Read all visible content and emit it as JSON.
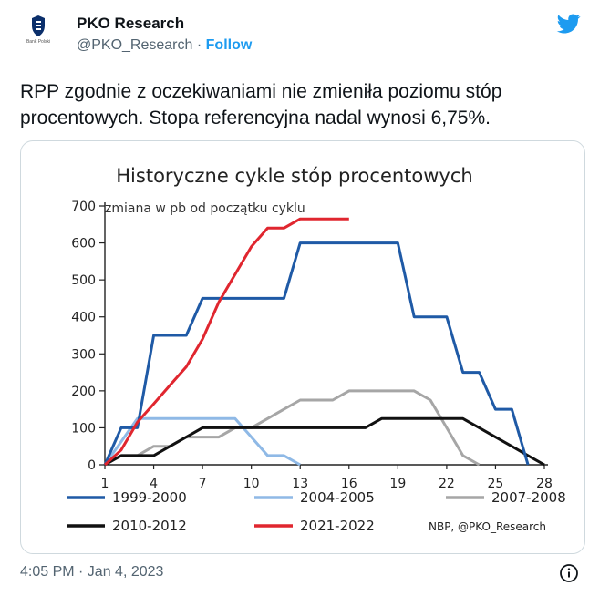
{
  "account": {
    "display_name": "PKO Research",
    "handle": "@PKO_Research",
    "separator": "·",
    "follow_label": "Follow",
    "avatar_caption": "Bank Polski"
  },
  "tweet": {
    "text": "RPP zgodnie z oczekiwaniami nie zmieniła poziomu stóp procentowych. Stopa referencyjna nadal wynosi 6,75%.",
    "timestamp": "4:05 PM · Jan 4, 2023"
  },
  "colors": {
    "brand_blue": "#1d9bf0",
    "pko_navy": "#0b2f6b"
  },
  "icons": {
    "logo": "twitter-bird-icon",
    "info": "info-icon",
    "avatar": "pko-logo-icon"
  },
  "chart_data": {
    "type": "line",
    "title": "Historyczne cykle stóp procentowych",
    "ylabel": "zmiana w pb od początku cyklu",
    "source": "NBP, @PKO_Research",
    "xlim": [
      1,
      28
    ],
    "ylim": [
      0,
      700
    ],
    "x_ticks": [
      1,
      4,
      7,
      10,
      13,
      16,
      19,
      22,
      25,
      28
    ],
    "y_ticks": [
      0,
      100,
      200,
      300,
      400,
      500,
      600,
      700
    ],
    "grid": false,
    "legend_position": "bottom",
    "series": [
      {
        "name": "1999-2000",
        "color": "#1f5aa6",
        "points": [
          [
            1,
            0
          ],
          [
            2,
            100
          ],
          [
            3,
            100
          ],
          [
            4,
            350
          ],
          [
            5,
            350
          ],
          [
            6,
            350
          ],
          [
            7,
            450
          ],
          [
            8,
            450
          ],
          [
            9,
            450
          ],
          [
            10,
            450
          ],
          [
            11,
            450
          ],
          [
            12,
            450
          ],
          [
            13,
            600
          ],
          [
            14,
            600
          ],
          [
            15,
            600
          ],
          [
            16,
            600
          ],
          [
            17,
            600
          ],
          [
            18,
            600
          ],
          [
            19,
            600
          ],
          [
            20,
            400
          ],
          [
            21,
            400
          ],
          [
            22,
            400
          ],
          [
            23,
            250
          ],
          [
            24,
            250
          ],
          [
            25,
            150
          ],
          [
            26,
            150
          ],
          [
            27,
            0
          ]
        ]
      },
      {
        "name": "2004-2005",
        "color": "#8fb9e6",
        "points": [
          [
            1,
            0
          ],
          [
            3,
            125
          ],
          [
            4,
            125
          ],
          [
            5,
            125
          ],
          [
            6,
            125
          ],
          [
            7,
            125
          ],
          [
            8,
            125
          ],
          [
            9,
            125
          ],
          [
            10,
            75
          ],
          [
            11,
            25
          ],
          [
            12,
            25
          ],
          [
            13,
            0
          ]
        ]
      },
      {
        "name": "2007-2008",
        "color": "#a6a6a6",
        "points": [
          [
            1,
            0
          ],
          [
            2,
            25
          ],
          [
            3,
            25
          ],
          [
            4,
            50
          ],
          [
            5,
            50
          ],
          [
            6,
            75
          ],
          [
            7,
            75
          ],
          [
            8,
            75
          ],
          [
            9,
            100
          ],
          [
            10,
            100
          ],
          [
            11,
            125
          ],
          [
            12,
            150
          ],
          [
            13,
            175
          ],
          [
            14,
            175
          ],
          [
            15,
            175
          ],
          [
            16,
            200
          ],
          [
            17,
            200
          ],
          [
            18,
            200
          ],
          [
            19,
            200
          ],
          [
            20,
            200
          ],
          [
            21,
            175
          ],
          [
            22,
            100
          ],
          [
            23,
            25
          ],
          [
            24,
            0
          ]
        ]
      },
      {
        "name": "2010-2012",
        "color": "#111111",
        "points": [
          [
            1,
            0
          ],
          [
            2,
            25
          ],
          [
            3,
            25
          ],
          [
            4,
            25
          ],
          [
            5,
            50
          ],
          [
            6,
            75
          ],
          [
            7,
            100
          ],
          [
            8,
            100
          ],
          [
            9,
            100
          ],
          [
            10,
            100
          ],
          [
            11,
            100
          ],
          [
            12,
            100
          ],
          [
            13,
            100
          ],
          [
            14,
            100
          ],
          [
            15,
            100
          ],
          [
            16,
            100
          ],
          [
            17,
            100
          ],
          [
            18,
            125
          ],
          [
            19,
            125
          ],
          [
            20,
            125
          ],
          [
            21,
            125
          ],
          [
            22,
            125
          ],
          [
            23,
            125
          ],
          [
            24,
            100
          ],
          [
            25,
            75
          ],
          [
            26,
            50
          ],
          [
            27,
            25
          ],
          [
            28,
            0
          ]
        ]
      },
      {
        "name": "2021-2022",
        "color": "#e0262f",
        "points": [
          [
            1,
            0
          ],
          [
            2,
            40
          ],
          [
            3,
            115
          ],
          [
            4,
            165
          ],
          [
            5,
            215
          ],
          [
            6,
            265
          ],
          [
            7,
            340
          ],
          [
            8,
            440
          ],
          [
            9,
            515
          ],
          [
            10,
            590
          ],
          [
            11,
            640
          ],
          [
            12,
            640
          ],
          [
            13,
            665
          ],
          [
            14,
            665
          ],
          [
            15,
            665
          ],
          [
            16,
            665
          ]
        ]
      }
    ]
  }
}
